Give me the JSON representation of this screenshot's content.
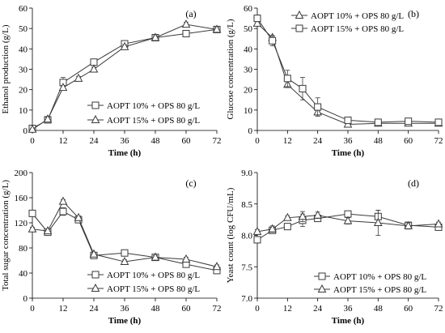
{
  "chart_data": [
    {
      "type": "line",
      "panel_label": "(a)",
      "xlabel": "Time (h)",
      "ylabel": "Ethanol production (g/L)",
      "xlim": [
        0,
        72
      ],
      "ylim": [
        0,
        60
      ],
      "x_ticks": [
        0,
        12,
        24,
        36,
        48,
        60,
        72
      ],
      "y_ticks": [
        0,
        10,
        20,
        30,
        40,
        50,
        60
      ],
      "grid": false,
      "legend_position": "bottom-right",
      "series": [
        {
          "name": "AOPT 10% + OPS 80 g/L",
          "marker": "square",
          "x": [
            0,
            6,
            12,
            24,
            36,
            48,
            60,
            72
          ],
          "y": [
            1.0,
            5.2,
            23.5,
            33.5,
            42.5,
            45.5,
            47.5,
            49.5
          ],
          "err": [
            0.5,
            1.5,
            2.5,
            1.0,
            1.5,
            1.5,
            1.5,
            1.0
          ]
        },
        {
          "name": "AOPT 15% + OPS 80 g/L",
          "marker": "triangle",
          "x": [
            0,
            6,
            12,
            18,
            24,
            36,
            48,
            60,
            72
          ],
          "y": [
            0.5,
            5.5,
            21.0,
            25.5,
            30.0,
            41.0,
            45.5,
            52.0,
            49.5
          ],
          "err": [
            0.3,
            1.0,
            1.0,
            1.0,
            1.0,
            1.0,
            1.0,
            1.0,
            1.0
          ]
        }
      ]
    },
    {
      "type": "line",
      "panel_label": "(b)",
      "xlabel": "Time (h)",
      "ylabel": "Glucose concentration (g/L)",
      "xlim": [
        0,
        72
      ],
      "ylim": [
        0,
        60
      ],
      "x_ticks": [
        0,
        12,
        24,
        36,
        48,
        60,
        72
      ],
      "y_ticks": [
        0,
        10,
        20,
        30,
        40,
        50,
        60
      ],
      "grid": false,
      "legend_position": "top-right",
      "series": [
        {
          "name": "AOPT 10% + OPS 80 g/L",
          "marker": "triangle",
          "x": [
            0,
            6,
            12,
            24,
            36,
            48,
            60,
            72
          ],
          "y": [
            52.5,
            45.5,
            22.5,
            9.0,
            3.0,
            3.5,
            3.5,
            3.5
          ],
          "err": [
            1.0,
            1.0,
            1.5,
            1.5,
            0.5,
            0.5,
            0.5,
            0.5
          ]
        },
        {
          "name": "AOPT 15% + OPS 80 g/L",
          "marker": "square",
          "x": [
            0,
            6,
            12,
            18,
            24,
            36,
            48,
            60,
            72
          ],
          "y": [
            55.0,
            44.0,
            25.5,
            20.5,
            11.5,
            5.0,
            4.0,
            4.5,
            4.0
          ],
          "err": [
            1.5,
            2.5,
            4.0,
            5.5,
            4.5,
            0.8,
            0.5,
            0.5,
            0.5
          ]
        }
      ]
    },
    {
      "type": "line",
      "panel_label": "(c)",
      "xlabel": "Time (h)",
      "ylabel": "Total sugar concentration (g/L)",
      "xlim": [
        0,
        72
      ],
      "ylim": [
        0,
        200
      ],
      "x_ticks": [
        0,
        12,
        24,
        36,
        48,
        60,
        72
      ],
      "y_ticks": [
        0,
        40,
        80,
        120,
        160,
        200
      ],
      "grid": false,
      "legend_position": "bottom-right",
      "series": [
        {
          "name": "AOPT 10% + OPS 80 g/L",
          "marker": "square",
          "x": [
            0,
            6,
            12,
            18,
            24,
            36,
            48,
            60,
            72
          ],
          "y": [
            135,
            105,
            138,
            125,
            68,
            72,
            65,
            54,
            44
          ],
          "err": [
            3,
            3,
            6,
            3,
            3,
            3,
            3,
            3,
            3
          ]
        },
        {
          "name": "AOPT 15% + OPS 80 g/L",
          "marker": "triangle",
          "x": [
            0,
            6,
            12,
            18,
            24,
            36,
            48,
            60,
            72
          ],
          "y": [
            110,
            107,
            154,
            128,
            70,
            58,
            65,
            62,
            50
          ],
          "err": [
            3,
            3,
            3,
            3,
            3,
            3,
            3,
            3,
            3
          ]
        }
      ]
    },
    {
      "type": "line",
      "panel_label": "(d)",
      "xlabel": "Time (h)",
      "ylabel": "Yeast count (log CFU/mL)",
      "xlim": [
        0,
        72
      ],
      "ylim": [
        7.0,
        9.0
      ],
      "x_ticks": [
        0,
        12,
        24,
        36,
        48,
        60,
        72
      ],
      "y_ticks": [
        "7.0",
        "7.5",
        "8.0",
        "8.5",
        "9.0"
      ],
      "grid": false,
      "legend_position": "bottom-right",
      "series": [
        {
          "name": "AOPT 10% + OPS 80 g/L",
          "marker": "square",
          "x": [
            0,
            6,
            12,
            18,
            24,
            36,
            48,
            60,
            72
          ],
          "y": [
            7.93,
            8.08,
            8.14,
            8.24,
            8.27,
            8.34,
            8.3,
            8.16,
            8.13
          ],
          "err": [
            0.05,
            0.05,
            0.05,
            0.1,
            0.05,
            0.03,
            0.1,
            0.03,
            0.03
          ]
        },
        {
          "name": "AOPT 15% + OPS 80 g/L",
          "marker": "triangle",
          "x": [
            0,
            6,
            12,
            18,
            24,
            36,
            48,
            60,
            72
          ],
          "y": [
            8.06,
            8.1,
            8.28,
            8.3,
            8.32,
            8.23,
            8.2,
            8.15,
            8.18
          ],
          "err": [
            0.03,
            0.05,
            0.03,
            0.08,
            0.05,
            0.05,
            0.2,
            0.05,
            0.03
          ]
        }
      ]
    }
  ]
}
